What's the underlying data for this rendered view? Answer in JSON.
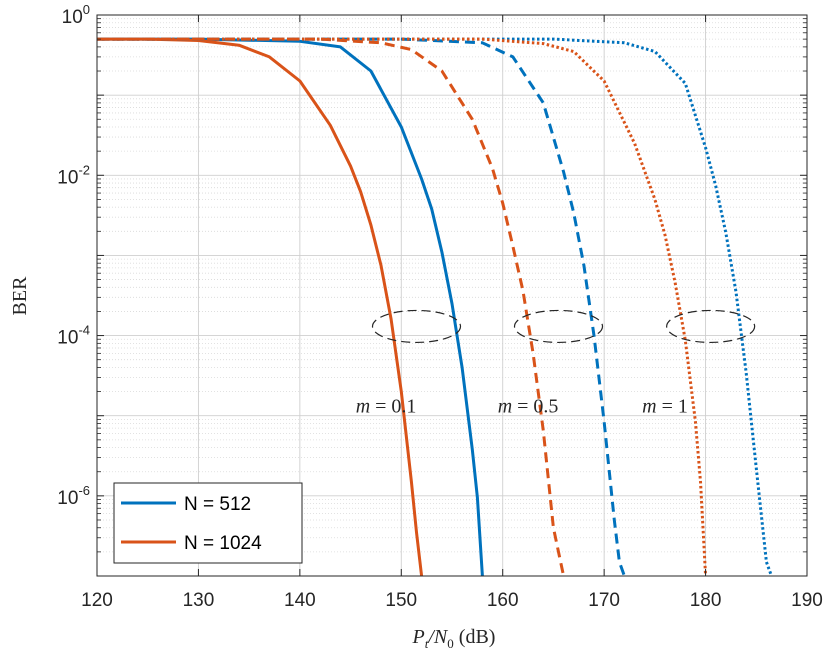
{
  "chart_data": {
    "type": "line",
    "title": "",
    "xlabel": "P_t/N_0 (dB)",
    "xlabel_parts": {
      "main": "P",
      "sub1": "t",
      "mid": "/N",
      "sub2": "0",
      "unit": " (dB)"
    },
    "ylabel": "BER",
    "xlim": [
      120,
      190
    ],
    "ylim": [
      1e-07,
      1
    ],
    "yscale": "log",
    "grid": "on (major and minor, dotted)",
    "x_ticks": [
      "120",
      "130",
      "140",
      "150",
      "160",
      "170",
      "180",
      "190"
    ],
    "y_ticks": [
      {
        "base": "10",
        "exp": "0",
        "value": 1
      },
      {
        "base": "10",
        "exp": "-2",
        "value": 0.01
      },
      {
        "base": "10",
        "exp": "-4",
        "value": 0.0001
      },
      {
        "base": "10",
        "exp": "-6",
        "value": 1e-06
      }
    ],
    "legend": {
      "placement": "bottom-left",
      "entries": [
        "N = 512",
        "N = 1024"
      ]
    },
    "series": [
      {
        "name": "N = 512",
        "group": "m = 0.1",
        "color": "#0072BD",
        "dash": "solid",
        "x": [
          120,
          130,
          140,
          144,
          147,
          150,
          152,
          153,
          154,
          155,
          156,
          157,
          157.5,
          158
        ],
        "y": [
          0.5,
          0.5,
          0.47,
          0.4,
          0.2,
          0.04,
          0.009,
          0.0038,
          0.0011,
          0.00025,
          4e-05,
          3.8e-06,
          9.5e-07,
          1e-07
        ]
      },
      {
        "name": "N = 1024",
        "group": "m = 0.1",
        "color": "#D95319",
        "dash": "solid",
        "x": [
          120,
          125,
          130,
          134,
          137,
          140,
          143,
          145,
          146,
          147,
          148,
          149,
          150,
          151,
          151.5,
          152
        ],
        "y": [
          0.5,
          0.5,
          0.48,
          0.42,
          0.3,
          0.15,
          0.042,
          0.013,
          0.0062,
          0.0024,
          0.00075,
          0.00016,
          2e-05,
          1.5e-06,
          3.5e-07,
          1e-07
        ]
      },
      {
        "name": "N = 512",
        "group": "m = 0.5",
        "color": "#0072BD",
        "dash": "dashed",
        "x": [
          120,
          150,
          158,
          161,
          164,
          166,
          167,
          168,
          169,
          170,
          171,
          171.5,
          172
        ],
        "y": [
          0.5,
          0.5,
          0.45,
          0.3,
          0.08,
          0.011,
          0.0034,
          0.00075,
          0.0001,
          8.5e-06,
          5e-07,
          1.5e-07,
          1e-07
        ]
      },
      {
        "name": "N = 1024",
        "group": "m = 0.5",
        "color": "#D95319",
        "dash": "dashed",
        "x": [
          120,
          142,
          148,
          151,
          154,
          157,
          159,
          160,
          161,
          162,
          163,
          164,
          165,
          165.5,
          166
        ],
        "y": [
          0.5,
          0.5,
          0.45,
          0.37,
          0.2,
          0.05,
          0.012,
          0.0045,
          0.0013,
          0.00036,
          6e-05,
          6.5e-06,
          4e-07,
          2e-07,
          1e-07
        ]
      },
      {
        "name": "N = 512",
        "group": "m = 1",
        "color": "#0072BD",
        "dash": "dotted",
        "x": [
          120,
          165,
          172,
          175,
          178,
          180,
          181,
          182,
          183,
          184,
          185,
          186,
          186.5
        ],
        "y": [
          0.5,
          0.5,
          0.45,
          0.35,
          0.14,
          0.022,
          0.0074,
          0.0019,
          0.00035,
          3.5e-05,
          2.2e-06,
          1.5e-07,
          1e-07
        ]
      },
      {
        "name": "N = 1024",
        "group": "m = 1",
        "color": "#D95319",
        "dash": "dotted",
        "x": [
          120,
          158,
          164,
          167,
          170,
          173,
          175,
          176,
          177,
          178,
          179,
          179.5,
          180
        ],
        "y": [
          0.5,
          0.5,
          0.44,
          0.35,
          0.15,
          0.025,
          0.005,
          0.0018,
          0.00046,
          8.75e-05,
          8.5e-06,
          1.5e-06,
          1e-07
        ]
      }
    ],
    "annotations": [
      {
        "var": "m",
        "eq": " = ",
        "val": "0.1",
        "x": 148.5,
        "y": 1.1e-05,
        "ellipse_center": [
          151.5,
          0.00013
        ]
      },
      {
        "var": "m",
        "eq": " = ",
        "val": "0.5",
        "x": 162.5,
        "y": 1.1e-05,
        "ellipse_center": [
          165.5,
          0.00013
        ]
      },
      {
        "var": "m",
        "eq": " = ",
        "val": "1",
        "x": 176,
        "y": 1.1e-05,
        "ellipse_center": [
          180.5,
          0.00013
        ]
      }
    ]
  }
}
